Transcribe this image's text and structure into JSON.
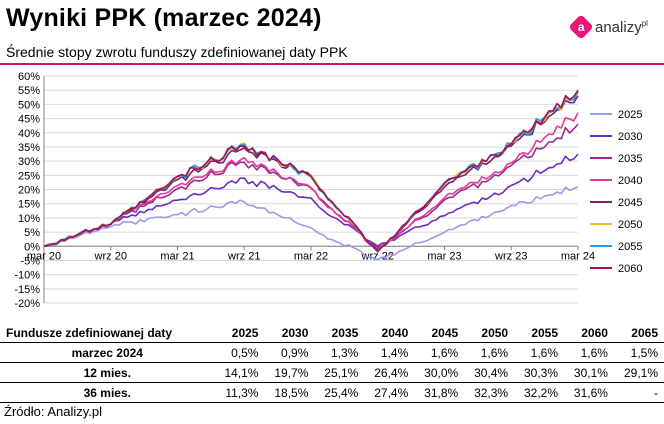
{
  "title": "Wyniki PPK (marzec 2024)",
  "subtitle": "Średnie stopy zwrotu funduszy zdefiniowanej daty PPK",
  "logo_glyph": "a",
  "logo_text": "analizy",
  "logo_superscript": "pl",
  "source": "Źródło: Analizy.pl",
  "chart_data": {
    "type": "line",
    "title": "",
    "xlabel": "",
    "ylabel": "",
    "ylim": [
      -20,
      60
    ],
    "yticks": [
      "60%",
      "55%",
      "50%",
      "45%",
      "40%",
      "35%",
      "30%",
      "25%",
      "20%",
      "15%",
      "10%",
      "5%",
      "0%",
      "-5%",
      "-10%",
      "-15%",
      "-20%"
    ],
    "xlabels": [
      "mar 20",
      "wrz 20",
      "mar 21",
      "wrz 21",
      "mar 22",
      "wrz 22",
      "mar 23",
      "wrz 23",
      "mar 24"
    ],
    "x": [
      "mar 20",
      "wrz 20",
      "mar 21",
      "wrz 21",
      "mar 22",
      "wrz 22",
      "mar 23",
      "wrz 23",
      "mar 24"
    ],
    "grid": true,
    "legend": "right",
    "series": [
      {
        "name": "2025",
        "color": "#9b9be8",
        "values": [
          0,
          7,
          11,
          16,
          6,
          -5,
          5,
          14,
          21
        ]
      },
      {
        "name": "2030",
        "color": "#6a2fbf",
        "values": [
          0,
          8,
          16,
          24,
          16,
          0,
          11,
          21,
          32.5
        ]
      },
      {
        "name": "2035",
        "color": "#9e2a8e",
        "values": [
          0,
          8,
          20,
          30,
          20,
          -1,
          16,
          28,
          43
        ]
      },
      {
        "name": "2040",
        "color": "#e23b9a",
        "values": [
          0,
          8,
          21,
          31,
          20,
          -1.5,
          17,
          29,
          47
        ]
      },
      {
        "name": "2045",
        "color": "#7a1f6e",
        "values": [
          0,
          8,
          23,
          35,
          24,
          -2,
          21,
          35,
          53
        ]
      },
      {
        "name": "2050",
        "color": "#f2b93b",
        "values": [
          0,
          8,
          24,
          36,
          24,
          -2,
          22,
          36,
          54
        ]
      },
      {
        "name": "2055",
        "color": "#1fa1e0",
        "values": [
          0,
          8,
          24,
          36,
          24,
          -2,
          22,
          36,
          54.5
        ]
      },
      {
        "name": "2060",
        "color": "#a3134f",
        "values": [
          0,
          8,
          24,
          36,
          24,
          -2,
          22,
          36,
          55
        ]
      }
    ]
  },
  "table": {
    "header_label": "Fundusze zdefiniowanej daty",
    "columns": [
      "2025",
      "2030",
      "2035",
      "2040",
      "2045",
      "2050",
      "2055",
      "2060",
      "2065"
    ],
    "rows": [
      {
        "label": "marzec 2024",
        "values": [
          "0,5%",
          "0,9%",
          "1,3%",
          "1,4%",
          "1,6%",
          "1,6%",
          "1,6%",
          "1,6%",
          "1,5%"
        ]
      },
      {
        "label": "12 mies.",
        "values": [
          "14,1%",
          "19,7%",
          "25,1%",
          "26,4%",
          "30,0%",
          "30,4%",
          "30,3%",
          "30,1%",
          "29,1%"
        ]
      },
      {
        "label": "36 mies.",
        "values": [
          "11,3%",
          "18,5%",
          "25,4%",
          "27,4%",
          "31,8%",
          "32,3%",
          "32,2%",
          "31,6%",
          "-"
        ]
      }
    ]
  }
}
